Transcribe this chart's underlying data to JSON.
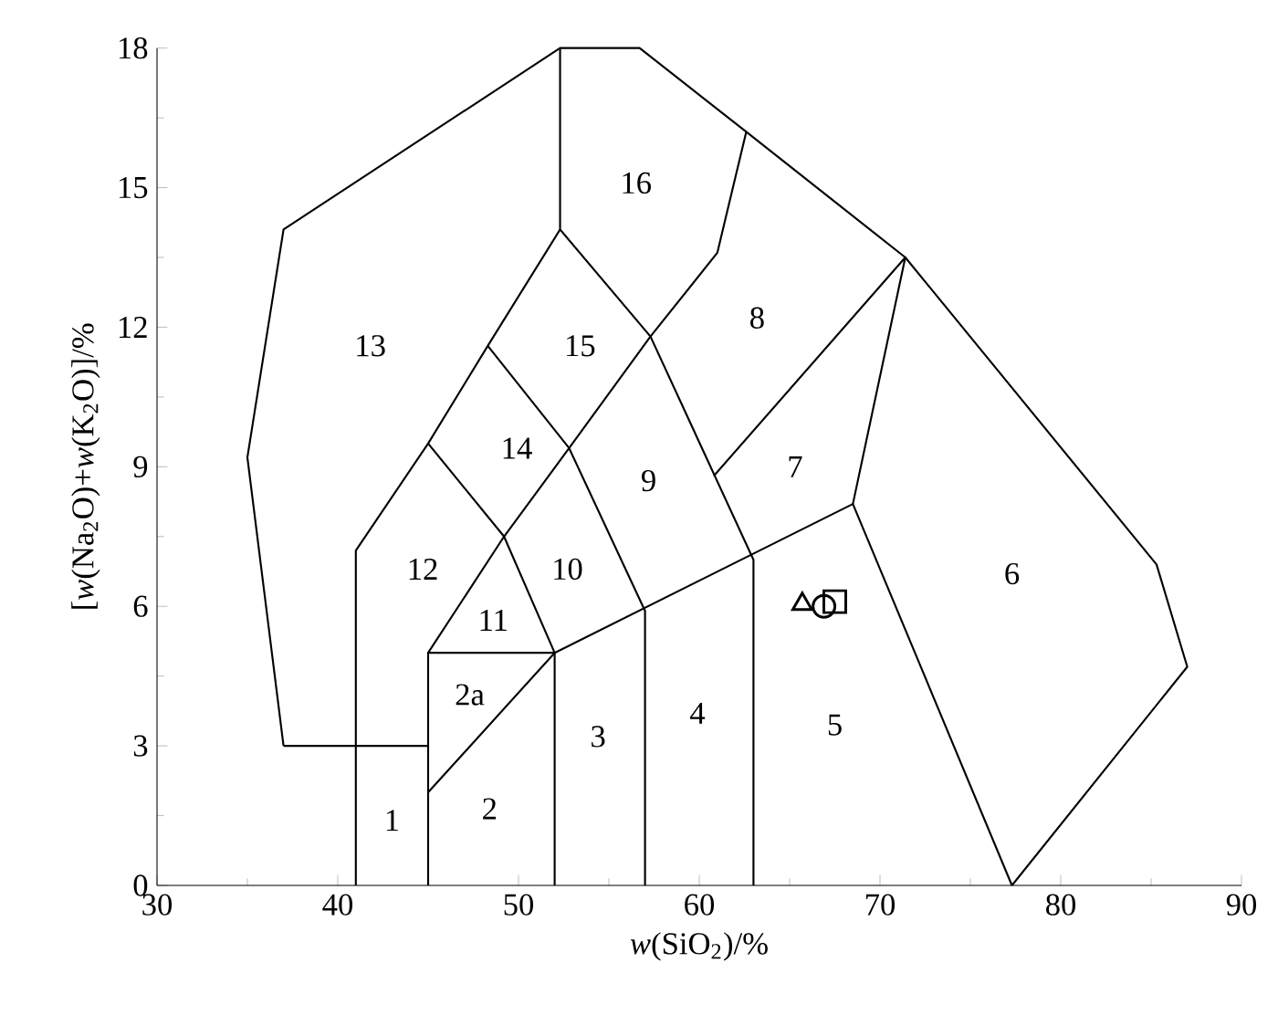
{
  "chart_data": {
    "type": "scatter",
    "xlabel": "*w*(SiO$_{2}$)/%",
    "ylabel": "[*w*(Na$_{2}$O)+*w*(K$_{2}$O)]/%",
    "xlim": [
      30,
      90
    ],
    "ylim": [
      0,
      18
    ],
    "xticks": [
      30,
      40,
      50,
      60,
      70,
      80,
      90
    ],
    "yticks": [
      0,
      3,
      6,
      9,
      12,
      15,
      18
    ],
    "series": [
      {
        "type": "line",
        "color": "#000000",
        "marker": "none",
        "x": [
          37,
          35,
          37,
          52.3,
          56.7,
          62.6,
          71.4,
          85.3,
          87,
          77.3
        ],
        "values": [
          3,
          9.2,
          14.1,
          18,
          18,
          16.2,
          13.5,
          6.9,
          4.7,
          0
        ]
      },
      {
        "type": "line",
        "color": "#000000",
        "marker": "none",
        "x": [
          37,
          45
        ],
        "values": [
          3,
          3
        ]
      },
      {
        "type": "line",
        "color": "#000000",
        "marker": "none",
        "x": [
          41,
          41,
          45,
          48.3,
          52.3,
          52.3
        ],
        "values": [
          0,
          7.2,
          9.5,
          11.6,
          14.1,
          18
        ]
      },
      {
        "type": "line",
        "color": "#000000",
        "marker": "none",
        "x": [
          45,
          45,
          52,
          68.5,
          77.3
        ],
        "values": [
          0,
          5,
          5,
          8.2,
          0
        ]
      },
      {
        "type": "line",
        "color": "#000000",
        "marker": "none",
        "x": [
          45,
          52
        ],
        "values": [
          2,
          5
        ]
      },
      {
        "type": "line",
        "color": "#000000",
        "marker": "none",
        "x": [
          45,
          49.2,
          52,
          52
        ],
        "values": [
          9.5,
          7.5,
          5,
          0
        ]
      },
      {
        "type": "line",
        "color": "#000000",
        "marker": "none",
        "x": [
          45,
          49.2,
          52.8,
          57.3,
          61,
          62.6
        ],
        "values": [
          5,
          7.5,
          9.4,
          11.8,
          13.6,
          16.2
        ]
      },
      {
        "type": "line",
        "color": "#000000",
        "marker": "none",
        "x": [
          48.3,
          52.8,
          57,
          57
        ],
        "values": [
          11.6,
          9.4,
          5.9,
          0
        ]
      },
      {
        "type": "line",
        "color": "#000000",
        "marker": "none",
        "x": [
          52.3,
          57.3,
          63,
          63
        ],
        "values": [
          14.1,
          11.8,
          7,
          0
        ]
      },
      {
        "type": "line",
        "color": "#000000",
        "marker": "none",
        "x": [
          60.8,
          71.4,
          68.5
        ],
        "values": [
          8.8,
          13.5,
          8.2
        ]
      },
      {
        "color": "#000000",
        "marker": "triangle",
        "x": [
          65.7
        ],
        "values": [
          6.05
        ]
      },
      {
        "color": "#000000",
        "marker": "square",
        "x": [
          67.5
        ],
        "values": [
          6.1
        ]
      },
      {
        "color": "#000000",
        "marker": "circle",
        "x": [
          66.9
        ],
        "values": [
          6.0
        ]
      }
    ],
    "annotations": [
      "1",
      "2",
      "2a",
      "3",
      "4",
      "5",
      "6",
      "7",
      "8",
      "9",
      "10",
      "11",
      "12",
      "13",
      "14",
      "15",
      "16"
    ]
  }
}
